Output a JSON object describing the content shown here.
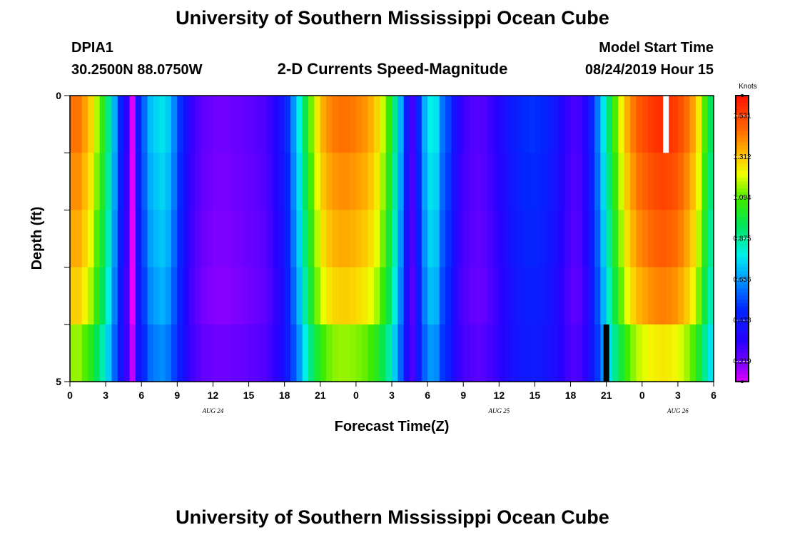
{
  "page": {
    "title_top": "University of Southern Mississippi Ocean Cube",
    "title_bottom": "University of Southern Mississippi Ocean Cube",
    "station_id": "DPIA1",
    "coordinates": "30.2500N 88.0750W",
    "model_start_label": "Model Start Time",
    "model_start_value": "08/24/2019 Hour 15"
  },
  "chart_data": {
    "type": "heatmap",
    "title": "2-D Currents Speed-Magnitude",
    "xlabel": "Forecast Time(Z)",
    "ylabel": "Depth (ft)",
    "y_ticks": [
      "0",
      "5"
    ],
    "x_ticks": [
      "0",
      "3",
      "6",
      "9",
      "12",
      "15",
      "18",
      "21",
      "0",
      "3",
      "6",
      "9",
      "12",
      "15",
      "18",
      "21",
      "0",
      "3",
      "6"
    ],
    "date_labels": [
      "AUG 24",
      "AUG 25",
      "AUG 26"
    ],
    "colorbar": {
      "unit": "Knots",
      "ticks": [
        "0.219",
        "0.438",
        "0.656",
        "0.875",
        "1.094",
        "1.312",
        "1.531"
      ],
      "range": [
        0.11,
        1.64
      ]
    },
    "time_hours": [
      0,
      54
    ],
    "depth_layers": 5,
    "profile_surface": [
      1.45,
      1.45,
      1.38,
      1.3,
      1.18,
      1.06,
      0.9,
      0.7,
      0.48,
      0.33,
      0.12,
      0.45,
      0.6,
      0.72,
      0.76,
      0.78,
      0.74,
      0.64,
      0.52,
      0.4,
      0.32,
      0.28,
      0.25,
      0.24,
      0.23,
      0.23,
      0.23,
      0.24,
      0.24,
      0.25,
      0.26,
      0.27,
      0.28,
      0.31,
      0.36,
      0.42,
      0.52,
      0.66,
      0.8,
      0.97,
      1.13,
      1.26,
      1.36,
      1.41,
      1.44,
      1.45,
      1.45,
      1.44,
      1.42,
      1.4,
      1.36,
      1.3,
      1.2,
      1.07,
      0.9,
      0.7,
      0.45,
      0.3,
      0.5,
      0.7,
      0.8,
      0.78,
      0.62,
      0.55,
      0.42,
      0.33,
      0.3,
      0.28,
      0.27,
      0.28,
      0.31,
      0.34,
      0.38,
      0.42,
      0.46,
      0.49,
      0.51,
      0.52,
      0.51,
      0.49,
      0.46,
      0.42,
      0.37,
      0.32,
      0.29,
      0.3,
      0.36,
      0.48,
      0.62,
      0.78,
      0.94,
      1.1,
      1.24,
      1.36,
      1.44,
      1.5,
      1.53,
      1.56,
      1.58,
      1.59,
      1.58,
      1.56,
      1.52,
      1.46,
      1.38,
      1.26,
      1.1,
      0.95
    ],
    "depth_factor": [
      1.0,
      0.97,
      0.94,
      0.9,
      0.86
    ],
    "bottom_layer_offset": [
      0.28,
      0.25,
      0.22,
      0.22,
      0.22
    ],
    "missing_cells": [
      {
        "hour": 50.0,
        "layer": 1,
        "color": "#ffffff"
      },
      {
        "hour": 45.0,
        "layer": 5,
        "color": "#000000"
      }
    ]
  }
}
